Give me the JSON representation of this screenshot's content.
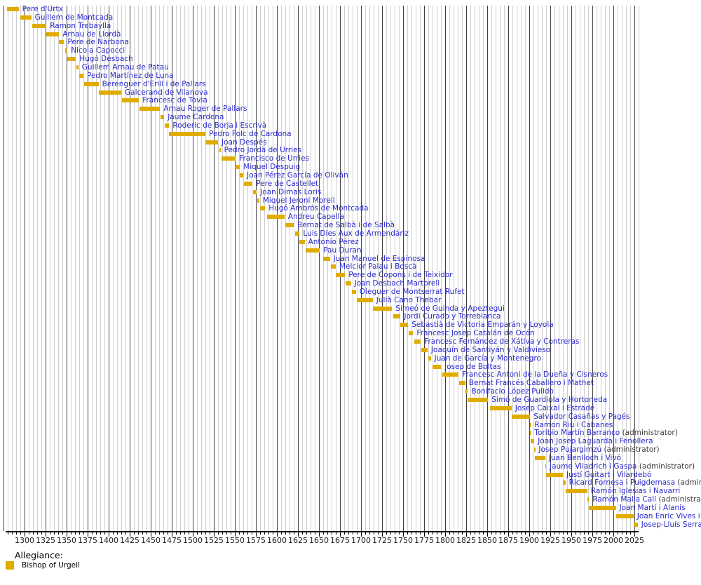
{
  "chart_data": {
    "type": "timeline",
    "description": "Gantt-style tenure timeline of Bishops of Urgell",
    "legend": {
      "title": "Allegiance:",
      "items": [
        {
          "label": "Bishop of Urgell",
          "color": "#E0AC00"
        }
      ]
    },
    "administrator_suffix": "(administrator)",
    "x_axis": {
      "min_year": 1275,
      "max_year": 2030,
      "minor_step": 5,
      "major_step": 25,
      "labeled_ticks": [
        1300,
        1325,
        1350,
        1375,
        1400,
        1425,
        1450,
        1475,
        1500,
        1525,
        1550,
        1575,
        1600,
        1625,
        1650,
        1675,
        1700,
        1725,
        1750,
        1775,
        1800,
        1825,
        1850,
        1875,
        1900,
        1925,
        1950,
        1975,
        2000,
        2025
      ]
    },
    "bars": [
      {
        "name": "Pere d'Urtx",
        "start": 1279,
        "end": 1293
      },
      {
        "name": "Guillem de Montcada",
        "start": 1295,
        "end": 1308
      },
      {
        "name": "Ramon Trebaylla",
        "start": 1309,
        "end": 1326
      },
      {
        "name": "Arnau de Llordà",
        "start": 1326,
        "end": 1341
      },
      {
        "name": "Pere de Narbona",
        "start": 1341,
        "end": 1347
      },
      {
        "name": "Nicola Capocci",
        "start": 1348,
        "end": 1351
      },
      {
        "name": "Hugó Desbach",
        "start": 1351,
        "end": 1361
      },
      {
        "name": "Guillem Arnau de Patau",
        "start": 1362,
        "end": 1364
      },
      {
        "name": "Pedro Martínez de Luna",
        "start": 1365,
        "end": 1370
      },
      {
        "name": "Berenguer d'Erill i de Pallars",
        "start": 1371,
        "end": 1388
      },
      {
        "name": "Galcerand de Vilanova",
        "start": 1388,
        "end": 1415
      },
      {
        "name": "Francesc de Tovia",
        "start": 1416,
        "end": 1436
      },
      {
        "name": "Arnau Roger de Pallars",
        "start": 1437,
        "end": 1461
      },
      {
        "name": "Jaume Cardona",
        "start": 1462,
        "end": 1466
      },
      {
        "name": "Roderic de Borja i Escrivà",
        "start": 1467,
        "end": 1472
      },
      {
        "name": "Pedro Folc de Cardona",
        "start": 1472,
        "end": 1515
      },
      {
        "name": "Joan Despés",
        "start": 1515,
        "end": 1530
      },
      {
        "name": "Pedro Jordà de Urries",
        "start": 1532,
        "end": 1533
      },
      {
        "name": "Francisco de Urries",
        "start": 1534,
        "end": 1551
      },
      {
        "name": "Miquel Despuig",
        "start": 1552,
        "end": 1556
      },
      {
        "name": "Joan Pérez García de Oliván",
        "start": 1556,
        "end": 1560
      },
      {
        "name": "Pere de Castellet",
        "start": 1561,
        "end": 1571
      },
      {
        "name": "Joan Dimas Loris",
        "start": 1572,
        "end": 1576
      },
      {
        "name": "Miquel Jeroni Morell",
        "start": 1577,
        "end": 1579
      },
      {
        "name": "Hugó Ambrós de Montcada",
        "start": 1580,
        "end": 1586
      },
      {
        "name": "Andreu Capella",
        "start": 1588,
        "end": 1609
      },
      {
        "name": "Bernat de Salbà i de Salbà",
        "start": 1610,
        "end": 1620
      },
      {
        "name": "Luis Dies Aux de Armendáriz",
        "start": 1622,
        "end": 1627
      },
      {
        "name": "Antonio Pérez",
        "start": 1627,
        "end": 1633
      },
      {
        "name": "Pau Duran",
        "start": 1634,
        "end": 1651
      },
      {
        "name": "Juan Manuel de Espinosa",
        "start": 1655,
        "end": 1663
      },
      {
        "name": "Melcior Palau i Boscà",
        "start": 1664,
        "end": 1670
      },
      {
        "name": "Pere de Copons i de Teixidor",
        "start": 1670,
        "end": 1681
      },
      {
        "name": "Joan Desbach Martorell",
        "start": 1682,
        "end": 1688
      },
      {
        "name": "Oleguer de Montserrat Rufet",
        "start": 1689,
        "end": 1694
      },
      {
        "name": "Julià Cano Thebar",
        "start": 1695,
        "end": 1714
      },
      {
        "name": "Simeó de Guinda y Apeztegui",
        "start": 1714,
        "end": 1737
      },
      {
        "name": "Jordi Curado y Torreblanca",
        "start": 1738,
        "end": 1747
      },
      {
        "name": "Sebastià de Victoria Emparán y Loyola",
        "start": 1747,
        "end": 1756
      },
      {
        "name": "Francesc Josep Catalán de Ocón",
        "start": 1757,
        "end": 1762
      },
      {
        "name": "Francesc Fernández de Xátiva y Contreras",
        "start": 1763,
        "end": 1771
      },
      {
        "name": "Joaquín de Santiyán y Valdivieso",
        "start": 1772,
        "end": 1779
      },
      {
        "name": "Juan de García y Montenegro",
        "start": 1780,
        "end": 1783
      },
      {
        "name": "Josep de Boltas",
        "start": 1785,
        "end": 1795
      },
      {
        "name": "Francesc Antoni de la Dueña y Cisneros",
        "start": 1797,
        "end": 1816
      },
      {
        "name": "Bernat Francés Caballero i Mathet",
        "start": 1817,
        "end": 1824
      },
      {
        "name": "Bonifacio López Pulido",
        "start": 1824,
        "end": 1827
      },
      {
        "name": "Simó de Guardiola y Hortoneda",
        "start": 1827,
        "end": 1851
      },
      {
        "name": "Josep Caixal i Estradé",
        "start": 1853,
        "end": 1879
      },
      {
        "name": "Salvador Casañas y Pagés",
        "start": 1879,
        "end": 1901
      },
      {
        "name": "Ramon Riu i Cabanes",
        "start": 1901,
        "end": 1902
      },
      {
        "name": "Toribio Martín Barranco",
        "start": 1901,
        "end": 1902,
        "administrator": true
      },
      {
        "name": "Joan Josep Laguarda i Fenollera",
        "start": 1902,
        "end": 1906
      },
      {
        "name": "Josep Pujargimzú",
        "start": 1906,
        "end": 1907,
        "administrator": true
      },
      {
        "name": "Juan Benlloch i Vivó",
        "start": 1907,
        "end": 1919
      },
      {
        "name": "Jaume Viladrich i Gaspa",
        "start": 1919,
        "end": 1920,
        "administrator": true
      },
      {
        "name": "Justí Guitart i Vilardebó",
        "start": 1920,
        "end": 1940
      },
      {
        "name": "Ricard Fornesa i Puigdemasa",
        "start": 1940,
        "end": 1943,
        "administrator": true
      },
      {
        "name": "Ramón Iglesias i Navarri",
        "start": 1943,
        "end": 1969
      },
      {
        "name": "Ramón Malla Call",
        "start": 1969,
        "end": 1971,
        "administrator": true
      },
      {
        "name": "Joan Martí i Alanis",
        "start": 1971,
        "end": 2003
      },
      {
        "name": "Joan Enric Vives i Sicília",
        "start": 2003,
        "end": 2024
      },
      {
        "name": "Josep-Lluís Serrano Pentinat",
        "start": 2024,
        "end": 2029
      }
    ]
  },
  "colors": {
    "bar": "#E0AC00",
    "name_text": "#2A2ACF",
    "administrator_text": "#3C3C3C",
    "grid_major": "#3F3F3F",
    "grid_minor": "#CFCFCF",
    "axis": "#000000",
    "background": "#FFFFFF"
  }
}
